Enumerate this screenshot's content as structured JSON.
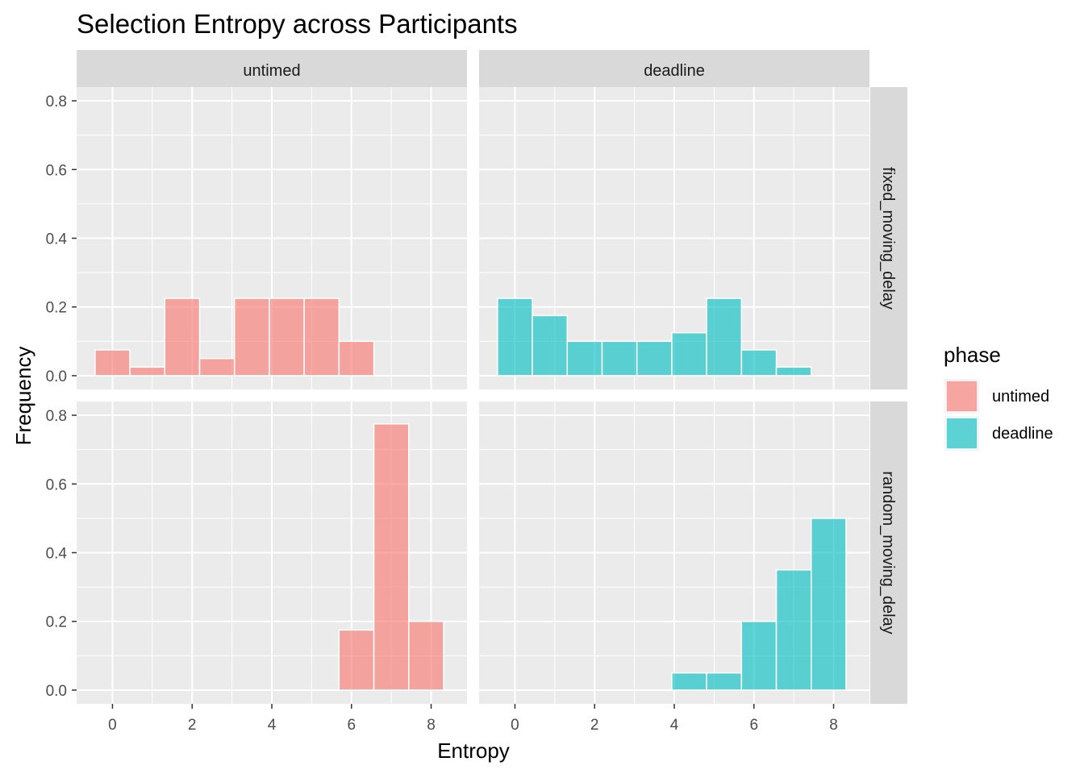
{
  "chart_data": {
    "type": "bar",
    "subtype": "faceted-histogram",
    "title": "Selection Entropy across Participants",
    "xlabel": "Entropy",
    "ylabel": "Frequency",
    "xlim": [
      -0.9,
      8.9
    ],
    "ylim": [
      -0.04,
      0.84
    ],
    "x_ticks": [
      0,
      2,
      4,
      6,
      8
    ],
    "y_ticks": [
      0.0,
      0.2,
      0.4,
      0.6,
      0.8
    ],
    "y_tick_labels": [
      "0.0",
      "0.2",
      "0.4",
      "0.6",
      "0.8"
    ],
    "bin_width": 0.875,
    "grid": true,
    "legend": {
      "title": "phase",
      "position": "right",
      "entries": [
        {
          "label": "untimed",
          "color": "#F8766D"
        },
        {
          "label": "deadline",
          "color": "#00BFC4"
        }
      ]
    },
    "columns": [
      "untimed",
      "deadline"
    ],
    "rows": [
      "fixed_moving_delay",
      "random_moving_delay"
    ],
    "panels": [
      {
        "column": "untimed",
        "row": "fixed_moving_delay",
        "series": "untimed",
        "bin_centers": [
          0,
          0.875,
          1.75,
          2.625,
          3.5,
          4.375,
          5.25,
          6.125
        ],
        "values": [
          0.075,
          0.025,
          0.225,
          0.05,
          0.225,
          0.225,
          0.225,
          0.1
        ]
      },
      {
        "column": "deadline",
        "row": "fixed_moving_delay",
        "series": "deadline",
        "bin_centers": [
          0,
          0.875,
          1.75,
          2.625,
          3.5,
          4.375,
          5.25,
          6.125,
          7.0
        ],
        "values": [
          0.225,
          0.175,
          0.1,
          0.1,
          0.1,
          0.125,
          0.225,
          0.075,
          0.025
        ]
      },
      {
        "column": "untimed",
        "row": "random_moving_delay",
        "series": "untimed",
        "bin_centers": [
          6.125,
          7.0,
          7.875
        ],
        "values": [
          0.175,
          0.775,
          0.2
        ]
      },
      {
        "column": "deadline",
        "row": "random_moving_delay",
        "series": "deadline",
        "bin_centers": [
          4.375,
          5.25,
          6.125,
          7.0,
          7.875
        ],
        "values": [
          0.05,
          0.05,
          0.2,
          0.35,
          0.5
        ]
      }
    ]
  }
}
